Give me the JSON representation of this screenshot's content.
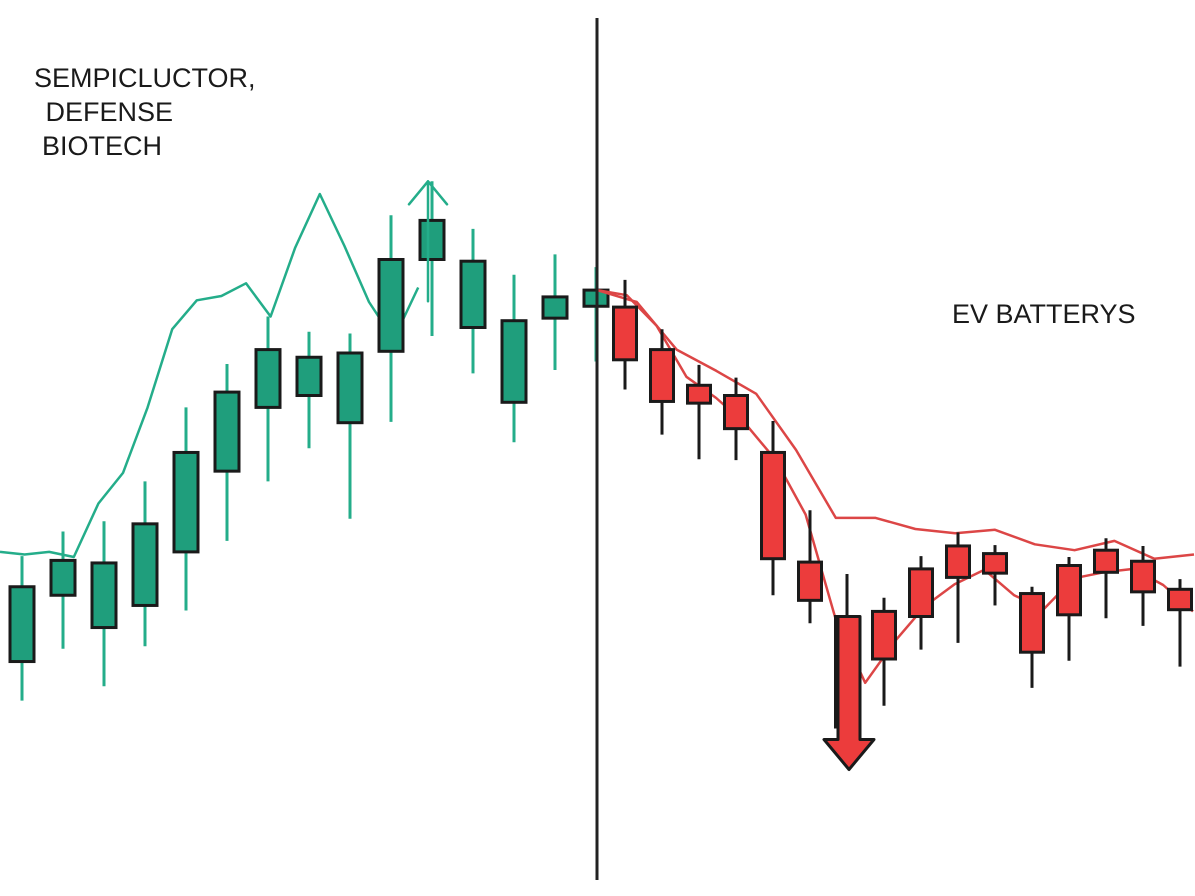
{
  "labels": {
    "left": [
      "SEMPICLUCTOR,",
      " DEFENSE",
      "BIOTECH"
    ],
    "right": "EV BATTERYS"
  },
  "colors": {
    "green_body": "#1f9e7c",
    "green_line": "#24ad8a",
    "red_body": "#ec3c3c",
    "red_line": "#dc4646",
    "outline": "#1a1a1a",
    "divider": "#222222"
  },
  "chart_data": {
    "type": "candlestick",
    "title": "",
    "xlabel": "",
    "ylabel": "",
    "grid": false,
    "ylim": [
      0,
      100
    ],
    "segments": [
      {
        "name": "SEMPICLUCTOR, DEFENSE BIOTECH",
        "color": "green",
        "candles": [
          {
            "open": 25.7,
            "close": 34.5,
            "high": 38.1,
            "low": 21.1
          },
          {
            "open": 33.5,
            "close": 37.6,
            "high": 41.0,
            "low": 27.2
          },
          {
            "open": 29.7,
            "close": 37.3,
            "high": 42.2,
            "low": 22.8
          },
          {
            "open": 32.3,
            "close": 41.9,
            "high": 46.9,
            "low": 27.5
          },
          {
            "open": 38.6,
            "close": 50.3,
            "high": 55.6,
            "low": 31.7
          },
          {
            "open": 48.1,
            "close": 57.4,
            "high": 60.7,
            "low": 39.9
          },
          {
            "open": 55.6,
            "close": 62.4,
            "high": 66.3,
            "low": 46.9
          },
          {
            "open": 57.0,
            "close": 61.5,
            "high": 64.5,
            "low": 50.8
          },
          {
            "open": 53.8,
            "close": 62.0,
            "high": 64.3,
            "low": 42.5
          },
          {
            "open": 62.2,
            "close": 73.0,
            "high": 78.2,
            "low": 53.9
          },
          {
            "open": 73.0,
            "close": 77.6,
            "high": 82.2,
            "low": 64.0
          },
          {
            "open": 65.0,
            "close": 72.8,
            "high": 76.6,
            "low": 59.6
          },
          {
            "open": 56.2,
            "close": 65.8,
            "high": 71.2,
            "low": 51.5
          },
          {
            "open": 66.1,
            "close": 68.6,
            "high": 73.6,
            "low": 60.0
          },
          {
            "open": 67.5,
            "close": 69.4,
            "high": 72.1,
            "low": 61.0
          }
        ],
        "line": [
          38.6,
          38.3,
          38.6,
          38.0,
          44.3,
          47.9,
          55.6,
          64.8,
          68.2,
          68.7,
          70.2,
          66.3,
          74.4,
          80.7,
          74.6,
          68.0,
          63.6,
          69.7
        ]
      },
      {
        "name": "EV BATTERYS",
        "color": "red",
        "candles": [
          {
            "open": 67.4,
            "close": 61.2,
            "high": 70.6,
            "low": 57.7
          },
          {
            "open": 62.4,
            "close": 56.3,
            "high": 64.8,
            "low": 52.4
          },
          {
            "open": 58.2,
            "close": 56.1,
            "high": 60.6,
            "low": 49.5
          },
          {
            "open": 57.0,
            "close": 53.1,
            "high": 59.1,
            "low": 49.4
          },
          {
            "open": 50.3,
            "close": 37.8,
            "high": 54.0,
            "low": 33.5
          },
          {
            "open": 37.4,
            "close": 32.9,
            "high": 43.5,
            "low": 30.2
          },
          {
            "open": 31.0,
            "close": 18.0,
            "high": 36.0,
            "low": 15.0
          },
          {
            "open": 31.6,
            "close": 26.0,
            "high": 33.2,
            "low": 20.5
          },
          {
            "open": 36.6,
            "close": 31.0,
            "high": 38.1,
            "low": 27.1
          },
          {
            "open": 39.3,
            "close": 35.6,
            "high": 40.9,
            "low": 27.9
          },
          {
            "open": 38.4,
            "close": 36.1,
            "high": 39.4,
            "low": 32.3
          },
          {
            "open": 33.7,
            "close": 26.8,
            "high": 34.5,
            "low": 22.6
          },
          {
            "open": 37.0,
            "close": 31.2,
            "high": 38.0,
            "low": 25.8
          },
          {
            "open": 38.8,
            "close": 36.2,
            "high": 40.2,
            "low": 30.8
          },
          {
            "open": 37.5,
            "close": 33.9,
            "high": 39.3,
            "low": 29.9
          },
          {
            "open": 34.2,
            "close": 31.8,
            "high": 35.4,
            "low": 25.1
          }
        ],
        "line": [
          69.4,
          68.8,
          65.2,
          59.2,
          56.7,
          53.6,
          49.4,
          43.0,
          30.8,
          23.2,
          28.1,
          32.2,
          34.8,
          36.5,
          33.5,
          31.9,
          35.5,
          36.2,
          36.6,
          34.7,
          31.6
        ],
        "line2": [
          69.4,
          68.0,
          62.4,
          59.9,
          57.2,
          50.6,
          42.6,
          42.6,
          41.3,
          40.8,
          41.2,
          39.5,
          38.8,
          39.9,
          37.8,
          38.3
        ]
      }
    ],
    "annotations": [
      {
        "type": "arrow-up",
        "segment": 0,
        "value": 82.2
      },
      {
        "type": "arrow-down",
        "segment": 1,
        "value": 13.0
      }
    ]
  }
}
